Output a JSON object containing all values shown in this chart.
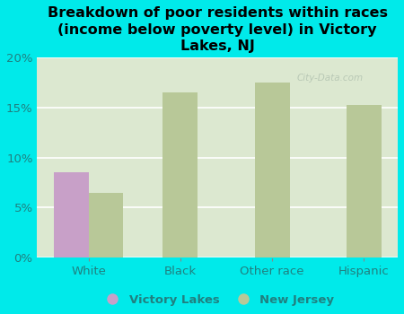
{
  "title": "Breakdown of poor residents within races\n(income below poverty level) in Victory\nLakes, NJ",
  "categories": [
    "White",
    "Black",
    "Other race",
    "Hispanic"
  ],
  "victory_lakes": [
    8.5,
    0,
    0,
    0
  ],
  "new_jersey": [
    6.5,
    16.5,
    17.5,
    15.3
  ],
  "vl_color": "#c8a0c8",
  "nj_color": "#b8c898",
  "bg_color": "#00eaea",
  "plot_bg_top": "#dce8d0",
  "plot_bg_bottom": "#eef5e8",
  "ylim": [
    0,
    20
  ],
  "yticks": [
    0,
    5,
    10,
    15,
    20
  ],
  "ytick_labels": [
    "0%",
    "5%",
    "10%",
    "15%",
    "20%"
  ],
  "bar_width": 0.38,
  "title_fontsize": 11.5,
  "tick_fontsize": 9.5,
  "legend_fontsize": 9.5,
  "tick_color": "#208080",
  "grid_color": "#ffffff",
  "watermark": "City-Data.com"
}
